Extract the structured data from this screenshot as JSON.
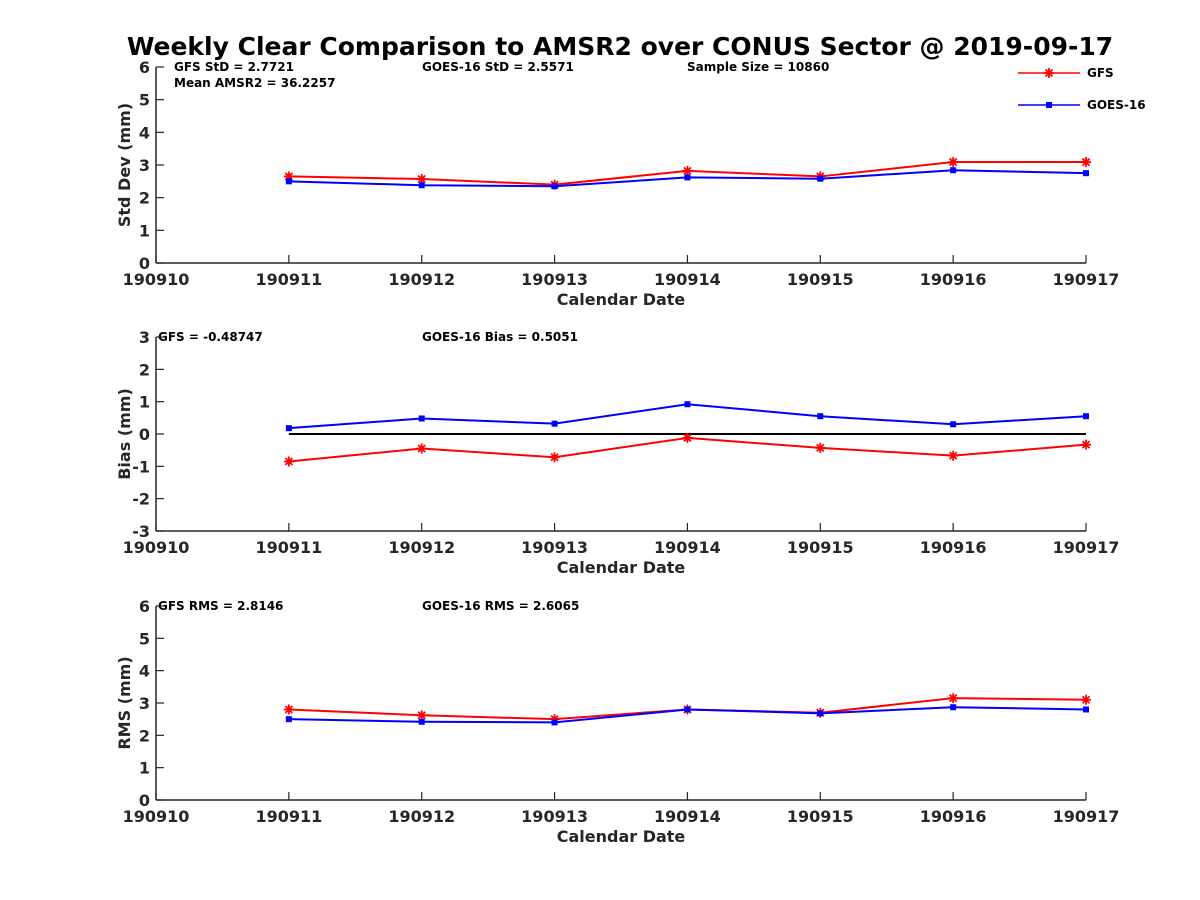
{
  "title": "Weekly Clear Comparison to AMSR2 over CONUS Sector @ 2019-09-17",
  "legend": {
    "position": "top-right",
    "entries": [
      {
        "label": "GFS",
        "color": "#ff0000",
        "marker": "asterisk"
      },
      {
        "label": "GOES-16",
        "color": "#0000ff",
        "marker": "square"
      }
    ]
  },
  "annotations": [
    [
      "GFS StD = 2.7721",
      "GOES-16 StD = 2.5571",
      "Sample Size = 10860",
      "Mean AMSR2 = 36.2257"
    ],
    [
      "GFS = -0.48747",
      "GOES-16 Bias  = 0.5051"
    ],
    [
      "GFS RMS = 2.8146",
      "GOES-16 RMS = 2.6065"
    ]
  ],
  "chart_data": [
    {
      "type": "line",
      "xlabel": "Calendar Date",
      "ylabel": "Std Dev (mm)",
      "categories": [
        "190910",
        "190911",
        "190912",
        "190913",
        "190914",
        "190915",
        "190916",
        "190917"
      ],
      "ylim": [
        0,
        6
      ],
      "yticks": [
        "0",
        "1",
        "2",
        "3",
        "4",
        "5",
        "6"
      ],
      "series": [
        {
          "name": "GFS",
          "color": "#ff0000",
          "values": [
            null,
            2.65,
            2.57,
            2.4,
            2.82,
            2.65,
            3.09,
            3.09
          ]
        },
        {
          "name": "GOES-16",
          "color": "#0000ff",
          "values": [
            null,
            2.5,
            2.38,
            2.35,
            2.62,
            2.58,
            2.84,
            2.75
          ]
        }
      ],
      "reference_line": null
    },
    {
      "type": "line",
      "xlabel": "Calendar Date",
      "ylabel": "Bias (mm)",
      "categories": [
        "190910",
        "190911",
        "190912",
        "190913",
        "190914",
        "190915",
        "190916",
        "190917"
      ],
      "ylim": [
        -3,
        3
      ],
      "yticks": [
        "-3",
        "-2",
        "-1",
        "0",
        "1",
        "2",
        "3"
      ],
      "series": [
        {
          "name": "GFS",
          "color": "#ff0000",
          "values": [
            null,
            -0.85,
            -0.45,
            -0.72,
            -0.12,
            -0.43,
            -0.67,
            -0.33
          ]
        },
        {
          "name": "GOES-16",
          "color": "#0000ff",
          "values": [
            null,
            0.18,
            0.48,
            0.32,
            0.92,
            0.55,
            0.3,
            0.55
          ]
        }
      ],
      "reference_line": 0
    },
    {
      "type": "line",
      "xlabel": "Calendar Date",
      "ylabel": "RMS (mm)",
      "categories": [
        "190910",
        "190911",
        "190912",
        "190913",
        "190914",
        "190915",
        "190916",
        "190917"
      ],
      "ylim": [
        0,
        6
      ],
      "yticks": [
        "0",
        "1",
        "2",
        "3",
        "4",
        "5",
        "6"
      ],
      "series": [
        {
          "name": "GFS",
          "color": "#ff0000",
          "values": [
            null,
            2.8,
            2.62,
            2.5,
            2.8,
            2.7,
            3.15,
            3.1
          ]
        },
        {
          "name": "GOES-16",
          "color": "#0000ff",
          "values": [
            null,
            2.5,
            2.42,
            2.4,
            2.8,
            2.68,
            2.87,
            2.8
          ]
        }
      ],
      "reference_line": null
    }
  ]
}
